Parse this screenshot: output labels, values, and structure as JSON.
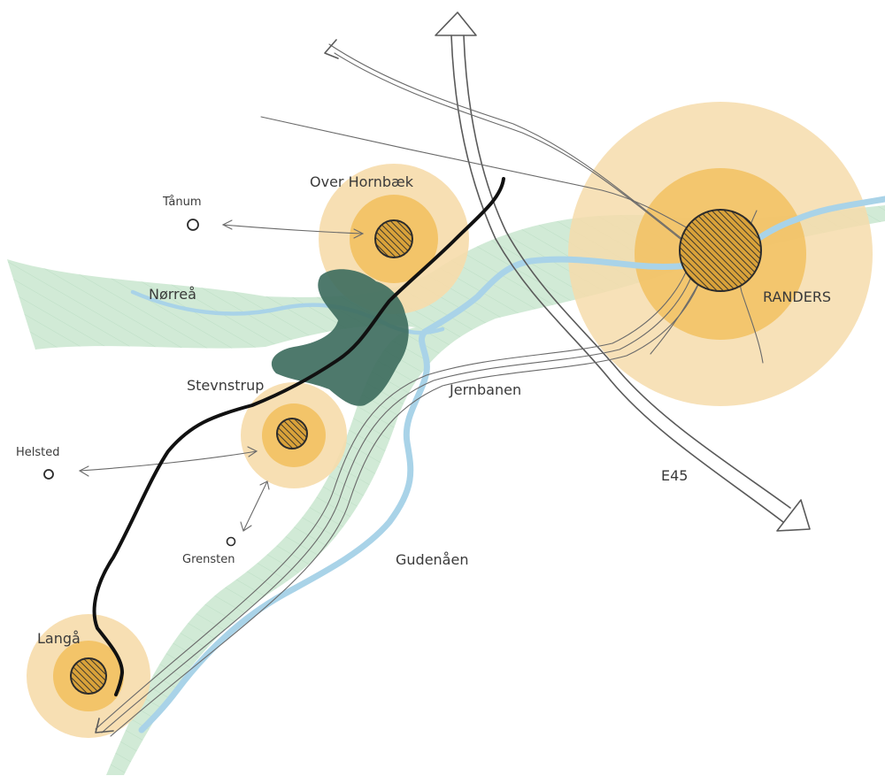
{
  "towns": {
    "randers": "RANDERS",
    "over_hornbaek": "Over Hornbæk",
    "stevnstrup": "Stevnstrup",
    "langaa": "Langå"
  },
  "villages": {
    "taanum": "Tånum",
    "helsted": "Helsted",
    "grensten": "Grensten"
  },
  "features": {
    "norreaa": "Nørreå",
    "jernbanen": "Jernbanen",
    "gudenaaen": "Gudenåen",
    "e45": "E45"
  },
  "colors": {
    "halo_outer": "#f6dcab",
    "halo_inner": "#f2c160",
    "valley_green": "#cfe9d4",
    "river_blue": "#a9d3e8",
    "forest_lake": "#3f6e60",
    "new_line": "#111111",
    "pencil": "#5a5a5a"
  }
}
